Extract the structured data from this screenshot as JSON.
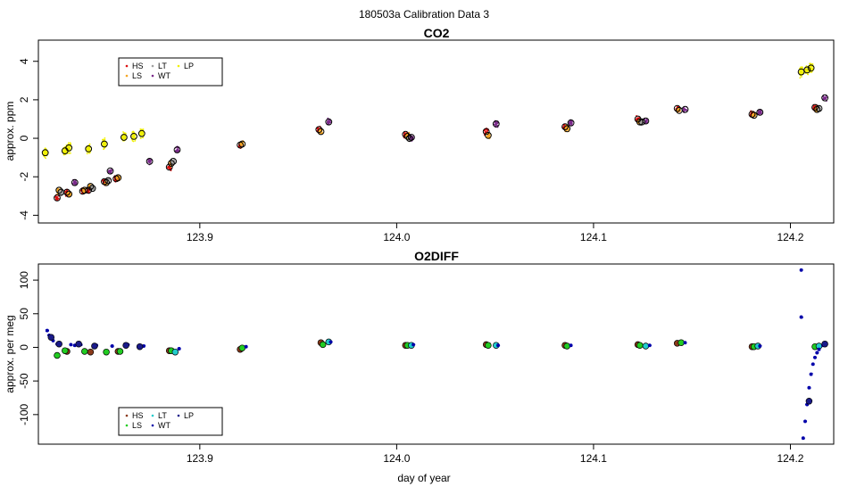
{
  "figure": {
    "suptitle": "180503a   Calibration Data 3",
    "xlabel": "day of year"
  },
  "chart_data": [
    {
      "type": "scatter",
      "title": "CO2",
      "xlabel": "",
      "ylabel": "approx. ppm",
      "xlim": [
        123.818,
        124.222
      ],
      "ylim": [
        -4.4,
        5.1
      ],
      "xticks": [
        "123.9",
        "124.0",
        "124.1",
        "124.2"
      ],
      "yticks": [
        "-4",
        "-2",
        "0",
        "2",
        "4"
      ],
      "xtick_values": [
        123.9,
        124.0,
        124.1,
        124.2
      ],
      "ytick_values": [
        -4,
        -2,
        0,
        2,
        4
      ],
      "legend": {
        "placement": "top-left",
        "entries": [
          {
            "name": "HS",
            "color": "#dd1111"
          },
          {
            "name": "LS",
            "color": "#f5a623"
          },
          {
            "name": "LT",
            "color": "#a0a0a0"
          },
          {
            "name": "WT",
            "color": "#7a2a8a"
          },
          {
            "name": "LP",
            "color": "#f0f000"
          }
        ]
      },
      "series": [
        {
          "name": "HS",
          "color": "#dd1111",
          "points": [
            [
              123.8275,
              -3.1
            ],
            [
              123.8325,
              -2.8
            ],
            [
              123.8405,
              -2.75
            ],
            [
              123.8435,
              -2.7
            ],
            [
              123.8515,
              -2.25
            ],
            [
              123.8575,
              -2.1
            ],
            [
              123.8845,
              -1.5
            ],
            [
              123.9205,
              -0.35
            ],
            [
              123.9605,
              0.45
            ],
            [
              124.0045,
              0.2
            ],
            [
              124.0455,
              0.35
            ],
            [
              124.0855,
              0.6
            ],
            [
              124.1225,
              1.0
            ],
            [
              124.1425,
              1.55
            ],
            [
              124.1805,
              1.25
            ],
            [
              124.2125,
              1.6
            ]
          ]
        },
        {
          "name": "LS",
          "color": "#f5a623",
          "points": [
            [
              123.8285,
              -2.7
            ],
            [
              123.8335,
              -2.9
            ],
            [
              123.8415,
              -2.7
            ],
            [
              123.8445,
              -2.5
            ],
            [
              123.8525,
              -2.3
            ],
            [
              123.8585,
              -2.05
            ],
            [
              123.8855,
              -1.3
            ],
            [
              123.9215,
              -0.3
            ],
            [
              123.9615,
              0.35
            ],
            [
              124.0055,
              0.1
            ],
            [
              124.0465,
              0.15
            ],
            [
              124.0865,
              0.5
            ],
            [
              124.1235,
              0.85
            ],
            [
              124.1435,
              1.45
            ],
            [
              124.1815,
              1.2
            ],
            [
              124.2135,
              1.5
            ]
          ]
        },
        {
          "name": "LT",
          "color": "#a0a0a0",
          "points": [
            [
              123.8295,
              -2.8
            ],
            [
              123.8455,
              -2.6
            ],
            [
              123.8535,
              -2.2
            ],
            [
              123.8865,
              -1.2
            ],
            [
              124.0065,
              0.0
            ],
            [
              124.1245,
              0.85
            ],
            [
              124.2145,
              1.55
            ]
          ]
        },
        {
          "name": "WT",
          "color": "#7a2a8a",
          "points": [
            [
              123.8365,
              -2.3
            ],
            [
              123.8545,
              -1.7
            ],
            [
              123.8745,
              -1.2
            ],
            [
              123.8885,
              -0.6
            ],
            [
              123.9655,
              0.85
            ],
            [
              124.0075,
              0.05
            ],
            [
              124.0505,
              0.75
            ],
            [
              124.0885,
              0.8
            ],
            [
              124.1265,
              0.9
            ],
            [
              124.1465,
              1.5
            ],
            [
              124.1845,
              1.35
            ],
            [
              124.2175,
              2.1
            ]
          ]
        },
        {
          "name": "LP",
          "color": "#f0f000",
          "points": [
            [
              123.8215,
              -0.75
            ],
            [
              123.8315,
              -0.65
            ],
            [
              123.8335,
              -0.5
            ],
            [
              123.8435,
              -0.55
            ],
            [
              123.8515,
              -0.3
            ],
            [
              123.8615,
              0.05
            ],
            [
              123.8665,
              0.1
            ],
            [
              123.8705,
              0.25
            ],
            [
              124.2055,
              3.45
            ],
            [
              124.2085,
              3.55
            ],
            [
              124.2105,
              3.65
            ]
          ]
        }
      ]
    },
    {
      "type": "scatter",
      "title": "O2DIFF",
      "xlabel": "day of year",
      "ylabel": "approx. per meg",
      "xlim": [
        123.818,
        124.222
      ],
      "ylim": [
        -144,
        124
      ],
      "xticks": [
        "123.9",
        "124.0",
        "124.1",
        "124.2"
      ],
      "yticks": [
        "-100",
        "-50",
        "0",
        "50",
        "100"
      ],
      "xtick_values": [
        123.9,
        124.0,
        124.1,
        124.2
      ],
      "ytick_values": [
        -100,
        -50,
        0,
        50,
        100
      ],
      "legend": {
        "placement": "bottom-left",
        "entries": [
          {
            "name": "HS",
            "color": "#8b3a1a"
          },
          {
            "name": "LS",
            "color": "#22cc22"
          },
          {
            "name": "LT",
            "color": "#22cccc"
          },
          {
            "name": "WT",
            "color": "#0000aa"
          },
          {
            "name": "LP",
            "color": "#1a1a8a"
          }
        ]
      },
      "series": [
        {
          "name": "HS",
          "color": "#8b3a1a",
          "points": [
            [
              123.8325,
              -6
            ],
            [
              123.8445,
              -7
            ],
            [
              123.8585,
              -6
            ],
            [
              123.8845,
              -5
            ],
            [
              123.9205,
              -3
            ],
            [
              123.9615,
              7
            ],
            [
              124.0045,
              3
            ],
            [
              124.0455,
              4
            ],
            [
              124.0855,
              3
            ],
            [
              124.1225,
              4
            ],
            [
              124.1425,
              6
            ],
            [
              124.1805,
              1
            ]
          ]
        },
        {
          "name": "LS",
          "color": "#22cc22",
          "points": [
            [
              123.8275,
              -12
            ],
            [
              123.8315,
              -5
            ],
            [
              123.8415,
              -6
            ],
            [
              123.8525,
              -7
            ],
            [
              123.8595,
              -6
            ],
            [
              123.8855,
              -5
            ],
            [
              123.9215,
              -1
            ],
            [
              123.9625,
              4
            ],
            [
              124.0055,
              3
            ],
            [
              124.0465,
              3
            ],
            [
              124.0865,
              2
            ],
            [
              124.1235,
              3
            ],
            [
              124.1445,
              7
            ],
            [
              124.1815,
              1
            ],
            [
              124.2125,
              1
            ]
          ]
        },
        {
          "name": "LT",
          "color": "#22cccc",
          "points": [
            [
              123.8875,
              -7
            ],
            [
              123.9655,
              8
            ],
            [
              124.0075,
              3
            ],
            [
              124.0505,
              3
            ],
            [
              124.1265,
              2
            ],
            [
              124.1835,
              2
            ],
            [
              124.2145,
              2
            ]
          ]
        },
        {
          "name": "WT",
          "color": "#0000aa",
          "points": [
            [
              123.8225,
              25
            ],
            [
              123.8235,
              18
            ],
            [
              123.8255,
              10
            ],
            [
              123.8275,
              5
            ],
            [
              123.8345,
              4
            ],
            [
              123.8365,
              3
            ],
            [
              123.8395,
              4
            ],
            [
              123.8475,
              3
            ],
            [
              123.8555,
              2
            ],
            [
              123.8635,
              4
            ],
            [
              123.8715,
              2
            ],
            [
              123.8895,
              -2
            ],
            [
              123.9235,
              1
            ],
            [
              123.9665,
              8
            ],
            [
              124.0085,
              4
            ],
            [
              124.0515,
              3
            ],
            [
              124.0885,
              3
            ],
            [
              124.1285,
              3
            ],
            [
              124.1465,
              7
            ],
            [
              124.1845,
              2
            ],
            [
              124.2065,
              -135
            ],
            [
              124.2075,
              -110
            ],
            [
              124.2085,
              -85
            ],
            [
              124.2095,
              -60
            ],
            [
              124.2105,
              -40
            ],
            [
              124.2115,
              -25
            ],
            [
              124.2125,
              -15
            ],
            [
              124.2135,
              -8
            ],
            [
              124.2145,
              -3
            ],
            [
              124.2165,
              3
            ],
            [
              124.2055,
              115
            ],
            [
              124.2055,
              45
            ]
          ]
        },
        {
          "name": "LP",
          "color": "#1a1a8a",
          "points": [
            [
              123.8245,
              15
            ],
            [
              123.8285,
              5
            ],
            [
              123.8385,
              5
            ],
            [
              123.8465,
              2
            ],
            [
              123.8625,
              3
            ],
            [
              123.8695,
              1
            ],
            [
              124.2095,
              -80
            ],
            [
              124.2175,
              5
            ]
          ]
        }
      ]
    }
  ]
}
